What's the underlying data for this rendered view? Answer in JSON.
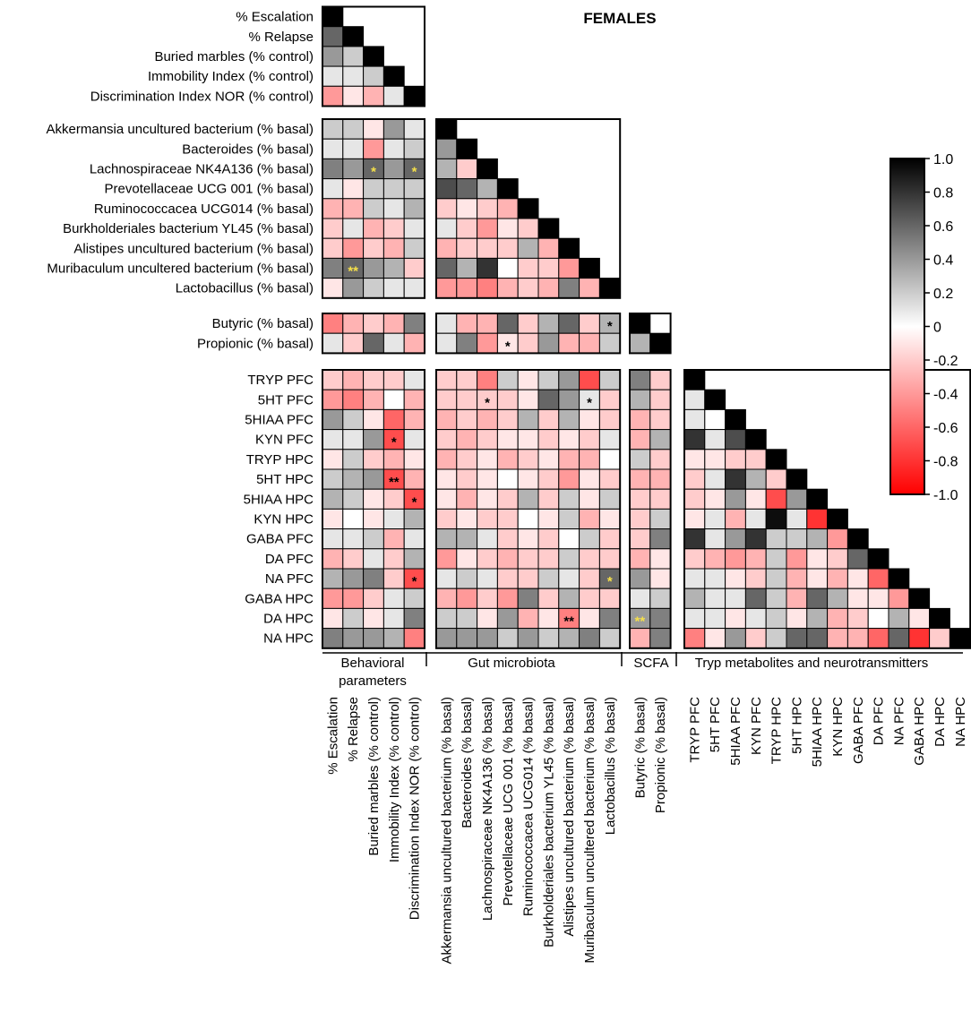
{
  "chart_data": {
    "type": "heatmap",
    "title": "FEMALES",
    "row_labels": [
      "% Escalation",
      "% Relapse",
      "Buried marbles (% control)",
      "Immobility Index (% control)",
      "Discrimination Index NOR (% control)",
      "Akkermansia uncultured bacterium (% basal)",
      "Bacteroides (% basal)",
      "Lachnospiraceae NK4A136 (% basal)",
      "Prevotellaceae UCG 001 (% basal)",
      "Ruminococcacea UCG014 (% basal)",
      "Burkholderiales bacterium YL45 (% basal)",
      "Alistipes uncultured bacterium (% basal)",
      "Muribaculum uncultered bacterium (% basal)",
      "Lactobacillus (% basal)",
      "Butyric (% basal)",
      "Propionic (% basal)",
      "TRYP PFC",
      "5HT PFC",
      "5HIAA PFC",
      "KYN PFC",
      "TRYP HPC",
      "5HT HPC",
      "5HIAA HPC",
      "KYN HPC",
      "GABA PFC",
      "DA PFC",
      "NA PFC",
      "GABA HPC",
      "DA HPC",
      "NA HPC"
    ],
    "column_labels": [
      "% Escalation",
      "% Relapse",
      "Buried marbles (% control)",
      "Immobility Index (% control)",
      "Discrimination Index NOR (% control)",
      "Akkermansia uncultured bacterium (% basal)",
      "Bacteroides (% basal)",
      "Lachnospiraceae NK4A136 (% basal)",
      "Prevotellaceae UCG 001 (% basal)",
      "Ruminococcacea UCG014 (% basal)",
      "Burkholderiales bacterium YL45 (% basal)",
      "Alistipes uncultured bacterium (% basal)",
      "Muribaculum uncultered bacterium (% basal)",
      "Lactobacillus (% basal)",
      "Butyric (% basal)",
      "Propionic (% basal)",
      "TRYP PFC",
      "5HT PFC",
      "5HIAA PFC",
      "KYN PFC",
      "TRYP HPC",
      "5HT HPC",
      "5HIAA HPC",
      "KYN HPC",
      "GABA PFC",
      "DA PFC",
      "NA PFC",
      "GABA HPC",
      "DA HPC",
      "NA HPC"
    ],
    "row_groups": [
      5,
      9,
      2,
      14
    ],
    "groups": [
      "Behavioral parameters",
      "Gut microbiota",
      "SCFA",
      "Tryp metabolites and neurotransmitters"
    ],
    "value_range": [
      -1.0,
      1.0
    ],
    "colorbar_ticks": [
      "1.0",
      "0.8",
      "0.6",
      "0.4",
      "0.2",
      "0",
      "-0.2",
      "-0.4",
      "-0.6",
      "-0.8",
      "-1.0"
    ],
    "colormap": {
      "positive": "#000000",
      "zero": "#ffffff",
      "negative": "#ff0000"
    },
    "values": [
      [
        1.0
      ],
      [
        0.6,
        1.0
      ],
      [
        0.4,
        0.2,
        1.0
      ],
      [
        0.1,
        0.1,
        0.2,
        1.0
      ],
      [
        -0.4,
        -0.1,
        -0.3,
        0.1,
        1.0
      ],
      [
        0.2,
        0.2,
        -0.1,
        0.4,
        0.1
      ],
      [
        0.1,
        0.1,
        -0.4,
        0.1,
        0.2
      ],
      [
        0.5,
        0.4,
        0.6,
        0.4,
        0.6
      ],
      [
        0.1,
        -0.1,
        0.2,
        0.2,
        0.2
      ],
      [
        -0.3,
        -0.3,
        0.2,
        0.1,
        0.3
      ],
      [
        -0.2,
        0.1,
        -0.3,
        -0.2,
        0.1
      ],
      [
        -0.2,
        -0.4,
        -0.2,
        -0.3,
        0.2
      ],
      [
        0.5,
        0.6,
        0.4,
        0.3,
        -0.2
      ],
      [
        -0.1,
        0.4,
        0.2,
        0.1,
        0.1
      ],
      [
        -0.5,
        -0.3,
        -0.2,
        -0.3,
        0.5
      ],
      [
        0.1,
        -0.2,
        0.6,
        0.1,
        -0.3
      ],
      [
        -0.2,
        -0.3,
        -0.2,
        -0.2,
        0.1
      ],
      [
        -0.4,
        -0.5,
        -0.3,
        0.0,
        -0.3
      ],
      [
        0.4,
        0.2,
        -0.1,
        -0.6,
        -0.3
      ],
      [
        0.1,
        0.1,
        0.4,
        -0.7,
        0.1
      ],
      [
        -0.1,
        0.2,
        -0.2,
        -0.3,
        -0.1
      ],
      [
        0.2,
        0.3,
        0.4,
        -0.7,
        -0.3
      ],
      [
        0.3,
        0.2,
        -0.1,
        -0.2,
        -0.7
      ],
      [
        -0.1,
        0.0,
        -0.1,
        0.1,
        0.3
      ],
      [
        0.1,
        0.1,
        0.2,
        -0.3,
        0.1
      ],
      [
        -0.3,
        -0.2,
        0.1,
        -0.2,
        0.3
      ],
      [
        0.3,
        0.4,
        0.5,
        -0.2,
        -0.7
      ],
      [
        -0.4,
        -0.4,
        -0.2,
        0.1,
        0.2
      ],
      [
        -0.1,
        0.2,
        -0.1,
        0.1,
        0.5
      ],
      [
        0.5,
        0.4,
        0.4,
        0.3,
        -0.5
      ],
      [
        1.0
      ],
      [
        0.4,
        1.0
      ],
      [
        0.3,
        -0.2,
        1.0
      ],
      [
        0.7,
        0.6,
        0.3,
        1.0
      ],
      [
        -0.2,
        -0.1,
        -0.2,
        -0.3,
        1.0
      ],
      [
        0.1,
        -0.2,
        -0.4,
        -0.1,
        -0.2,
        1.0
      ],
      [
        -0.3,
        -0.2,
        -0.2,
        -0.2,
        0.3,
        -0.3,
        1.0
      ],
      [
        0.6,
        0.3,
        0.8,
        0.0,
        -0.2,
        -0.2,
        -0.4,
        1.0
      ],
      [
        -0.4,
        -0.4,
        -0.5,
        -0.3,
        -0.2,
        -0.3,
        0.5,
        -0.3,
        1.0
      ],
      [
        0.1,
        -0.3,
        -0.3,
        0.6,
        -0.2,
        0.3,
        0.6,
        -0.2,
        0.3
      ],
      [
        0.1,
        0.5,
        -0.4,
        -0.1,
        -0.2,
        0.4,
        -0.3,
        -0.3,
        0.2
      ],
      [
        -0.2,
        -0.2,
        -0.5,
        0.2,
        -0.1,
        0.2,
        0.4,
        -0.7,
        0.2
      ],
      [
        -0.2,
        -0.2,
        -0.2,
        -0.2,
        -0.1,
        0.6,
        0.4,
        0.1,
        -0.2
      ],
      [
        -0.3,
        -0.2,
        -0.3,
        -0.2,
        0.3,
        -0.2,
        0.3,
        -0.1,
        -0.2
      ],
      [
        -0.2,
        -0.3,
        -0.2,
        -0.1,
        -0.1,
        -0.2,
        -0.1,
        -0.2,
        0.1
      ],
      [
        -0.3,
        -0.2,
        -0.1,
        -0.3,
        -0.2,
        -0.1,
        -0.3,
        -0.3,
        0.0
      ],
      [
        -0.1,
        -0.2,
        -0.1,
        0.0,
        -0.1,
        -0.2,
        -0.4,
        -0.1,
        -0.2
      ],
      [
        -0.1,
        -0.3,
        -0.1,
        -0.2,
        0.3,
        -0.2,
        0.2,
        -0.1,
        0.2
      ],
      [
        -0.2,
        -0.1,
        -0.2,
        -0.2,
        0.0,
        -0.1,
        0.2,
        -0.3,
        -0.1
      ],
      [
        0.3,
        0.3,
        0.1,
        -0.2,
        -0.1,
        -0.2,
        0.0,
        0.2,
        -0.2
      ],
      [
        -0.4,
        -0.1,
        -0.2,
        -0.3,
        -0.2,
        -0.2,
        0.2,
        -0.2,
        -0.2
      ],
      [
        0.1,
        0.2,
        0.1,
        -0.2,
        -0.2,
        0.2,
        0.1,
        -0.2,
        0.6
      ],
      [
        -0.3,
        -0.4,
        -0.2,
        -0.4,
        0.5,
        -0.2,
        0.3,
        -0.2,
        -0.2
      ],
      [
        0.2,
        0.2,
        -0.1,
        0.4,
        -0.3,
        -0.1,
        -0.5,
        -0.1,
        0.5
      ],
      [
        0.4,
        0.4,
        0.4,
        0.2,
        0.4,
        0.2,
        0.3,
        0.5,
        0.2
      ],
      [
        1.0
      ],
      [
        0.3,
        1.0
      ],
      [
        0.5,
        -0.2
      ],
      [
        0.3,
        -0.2
      ],
      [
        -0.3,
        -0.2
      ],
      [
        -0.3,
        0.3
      ],
      [
        0.2,
        -0.2
      ],
      [
        -0.3,
        -0.3
      ],
      [
        -0.2,
        -0.2
      ],
      [
        -0.2,
        0.2
      ],
      [
        -0.2,
        0.5
      ],
      [
        -0.3,
        -0.1
      ],
      [
        0.4,
        -0.1
      ],
      [
        0.1,
        0.2
      ],
      [
        0.4,
        0.5
      ],
      [
        -0.3,
        0.5
      ],
      [
        1.0
      ],
      [
        0.1,
        1.0
      ],
      [
        0.1,
        0.0,
        1.0
      ],
      [
        0.8,
        0.1,
        0.7,
        1.0
      ],
      [
        -0.1,
        -0.1,
        -0.2,
        -0.2,
        1.0
      ],
      [
        -0.2,
        0.1,
        0.8,
        0.3,
        -0.2,
        1.0
      ],
      [
        -0.2,
        -0.1,
        0.4,
        -0.1,
        -0.7,
        0.4,
        1.0
      ],
      [
        -0.1,
        0.1,
        -0.3,
        0.1,
        0.95,
        0.1,
        -0.8,
        1.0
      ],
      [
        0.8,
        0.1,
        0.4,
        0.8,
        0.2,
        0.2,
        0.3,
        -0.4,
        1.0
      ],
      [
        -0.2,
        -0.3,
        -0.4,
        -0.3,
        0.2,
        -0.4,
        -0.1,
        -0.2,
        0.6,
        1.0
      ],
      [
        0.1,
        0.1,
        -0.1,
        -0.2,
        0.2,
        -0.3,
        -0.1,
        -0.3,
        -0.1,
        -0.6,
        1.0
      ],
      [
        0.3,
        0.1,
        0.1,
        0.6,
        0.2,
        -0.3,
        0.6,
        0.3,
        -0.1,
        -0.1,
        -0.4,
        1.0
      ],
      [
        0.1,
        0.1,
        -0.1,
        0.1,
        0.2,
        -0.1,
        0.3,
        -0.3,
        -0.2,
        0.0,
        0.3,
        -0.1,
        1.0
      ],
      [
        -0.5,
        -0.1,
        0.4,
        -0.2,
        0.2,
        0.6,
        0.6,
        -0.3,
        -0.3,
        -0.6,
        0.6,
        -0.8,
        -0.2,
        1.0
      ]
    ],
    "values_note": "Lower-triangle correlation coefficients. Rows 1-30 cover the 'Behavioral parameters' columns; rows 31-56 cover 'Gut microbiota' columns; rows 57-72 cover 'SCFA' columns; rows 73-86 cover 'Tryp metabolites and neurotransmitters' columns.",
    "significance": [
      {
        "row": "Lachnospiraceae NK4A136 (% basal)",
        "column": "Buried marbles (% control)",
        "mark": "*"
      },
      {
        "row": "Lachnospiraceae NK4A136 (% basal)",
        "column": "Discrimination Index NOR (% control)",
        "mark": "*"
      },
      {
        "row": "Muribaculum uncultered bacterium (% basal)",
        "column": "% Relapse",
        "mark": "**"
      },
      {
        "row": "Butyric (% basal)",
        "column": "Lactobacillus (% basal)",
        "mark": "*"
      },
      {
        "row": "Propionic (% basal)",
        "column": "Prevotellaceae UCG 001 (% basal)",
        "mark": "*"
      },
      {
        "row": "5HT PFC",
        "column": "Lachnospiraceae NK4A136 (% basal)",
        "mark": "*"
      },
      {
        "row": "5HT PFC",
        "column": "Muribaculum uncultered bacterium (% basal)",
        "mark": "*"
      },
      {
        "row": "KYN PFC",
        "column": "Immobility Index (% control)",
        "mark": "*"
      },
      {
        "row": "5HT HPC",
        "column": "Immobility Index (% control)",
        "mark": "**"
      },
      {
        "row": "5HIAA HPC",
        "column": "Discrimination Index NOR (% control)",
        "mark": "*"
      },
      {
        "row": "NA PFC",
        "column": "Discrimination Index NOR (% control)",
        "mark": "*"
      },
      {
        "row": "NA PFC",
        "column": "Lactobacillus (% basal)",
        "mark": "*"
      },
      {
        "row": "DA HPC",
        "column": "Alistipes uncultured bacterium (% basal)",
        "mark": "**"
      },
      {
        "row": "DA HPC",
        "column": "Butyric (% basal)",
        "mark": "**"
      }
    ]
  }
}
